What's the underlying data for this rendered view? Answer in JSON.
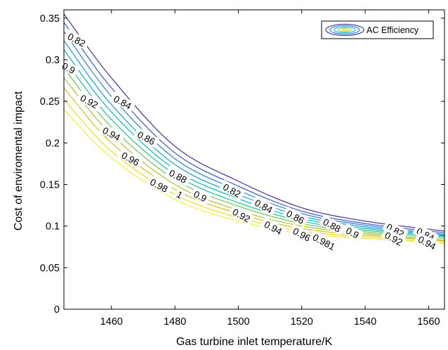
{
  "chart_data": {
    "type": "contour",
    "title": "",
    "xlabel": "Gas turbine inlet temperature/K",
    "ylabel": "Cost of enviromental impact",
    "xlim": [
      1445,
      1565
    ],
    "ylim": [
      0,
      0.36
    ],
    "xticks": [
      1460,
      1480,
      1500,
      1520,
      1540,
      1560
    ],
    "yticks": [
      0,
      0.05,
      0.1,
      0.15,
      0.2,
      0.25,
      0.3,
      0.35
    ],
    "ytick_labels": [
      "0",
      "0.05",
      "0.1",
      "0.15",
      "0.2",
      "0.25",
      "0.3",
      "0.35"
    ],
    "grid": false,
    "legend": {
      "position": "top-right",
      "entries": [
        "AC Efficiency"
      ]
    },
    "x": [
      1445,
      1460,
      1480,
      1500,
      1520,
      1540,
      1565
    ],
    "series": [
      {
        "level": 0.82,
        "color": "#4b3f9c",
        "y": [
          0.355,
          0.278,
          0.196,
          0.154,
          0.122,
          0.106,
          0.094
        ]
      },
      {
        "level": 0.84,
        "color": "#4566c2",
        "y": [
          0.345,
          0.266,
          0.188,
          0.148,
          0.118,
          0.103,
          0.092
        ]
      },
      {
        "level": 0.86,
        "color": "#3a86d8",
        "y": [
          0.334,
          0.256,
          0.181,
          0.143,
          0.115,
          0.101,
          0.09
        ]
      },
      {
        "level": 0.88,
        "color": "#24a6d6",
        "y": [
          0.323,
          0.246,
          0.174,
          0.138,
          0.112,
          0.099,
          0.089
        ]
      },
      {
        "level": 0.9,
        "color": "#17bcc3",
        "y": [
          0.312,
          0.237,
          0.168,
          0.133,
          0.109,
          0.097,
          0.088
        ]
      },
      {
        "level": 0.92,
        "color": "#2ec59a",
        "y": [
          0.301,
          0.228,
          0.162,
          0.128,
          0.106,
          0.095,
          0.087
        ]
      },
      {
        "level": 0.94,
        "color": "#72c762",
        "y": [
          0.29,
          0.219,
          0.156,
          0.124,
          0.103,
          0.093,
          0.085
        ]
      },
      {
        "level": 0.96,
        "color": "#aec63c",
        "y": [
          0.278,
          0.21,
          0.15,
          0.119,
          0.1,
          0.091,
          0.083
        ]
      },
      {
        "level": 0.98,
        "color": "#d8c12c",
        "y": [
          0.266,
          0.2,
          0.144,
          0.115,
          0.097,
          0.089,
          0.082
        ]
      },
      {
        "level": 1,
        "color": "#f4dc28",
        "y": [
          0.252,
          0.19,
          0.138,
          0.11,
          0.094,
          0.087,
          0.08
        ]
      },
      {
        "level": 1.02,
        "color": "#f8ee48",
        "y": [
          0.24,
          0.182,
          0.132,
          0.106,
          0.091,
          0.085,
          0.079
        ]
      }
    ],
    "contour_labels": [
      {
        "text": "0.82",
        "x": 1449,
        "y": 0.324
      },
      {
        "text": "0.84",
        "x": 1463.5,
        "y": 0.249
      },
      {
        "text": "0.86",
        "x": 1471,
        "y": 0.206
      },
      {
        "text": "0.88",
        "x": 1481,
        "y": 0.16
      },
      {
        "text": "0.82",
        "x": 1498,
        "y": 0.143
      },
      {
        "text": "0.84",
        "x": 1508,
        "y": 0.124
      },
      {
        "text": "0.86",
        "x": 1518,
        "y": 0.111
      },
      {
        "text": "0.88",
        "x": 1529.5,
        "y": 0.101
      },
      {
        "text": "0.82",
        "x": 1549.5,
        "y": 0.095
      },
      {
        "text": "0.84",
        "x": 1559,
        "y": 0.09
      },
      {
        "text": "0.9",
        "x": 1446.5,
        "y": 0.29
      },
      {
        "text": "0.92",
        "x": 1453,
        "y": 0.25
      },
      {
        "text": "0.94",
        "x": 1460,
        "y": 0.211
      },
      {
        "text": "0.96",
        "x": 1466,
        "y": 0.181
      },
      {
        "text": "0.98",
        "x": 1475,
        "y": 0.149
      },
      {
        "text": "1",
        "x": 1481.5,
        "y": 0.138
      },
      {
        "text": "0.9",
        "x": 1488,
        "y": 0.136
      },
      {
        "text": "0.92",
        "x": 1501,
        "y": 0.113
      },
      {
        "text": "0.94",
        "x": 1511,
        "y": 0.098
      },
      {
        "text": "0.96",
        "x": 1520,
        "y": 0.09
      },
      {
        "text": "0.9",
        "x": 1536,
        "y": 0.092
      },
      {
        "text": "0.981",
        "x": 1527,
        "y": 0.081
      },
      {
        "text": "0.92",
        "x": 1549,
        "y": 0.085
      },
      {
        "text": "0.94",
        "x": 1559.5,
        "y": 0.08
      }
    ]
  }
}
